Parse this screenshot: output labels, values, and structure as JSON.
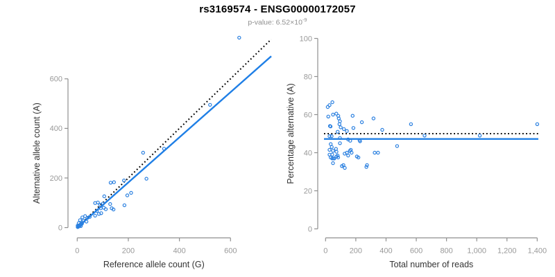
{
  "header": {
    "title": "rs3169574 - ENSG00000172057",
    "pvalue_text": "p-value: 6.52×10",
    "pvalue_exponent": "-9"
  },
  "colors": {
    "point": "#2b80e0",
    "fit_line": "#1f7fe6",
    "reference_line": "#000000",
    "axis": "#8f8f8f",
    "tick_label": "#999999",
    "axis_title": "#333333",
    "title": "#000000",
    "subtitle": "#8f8f8f"
  },
  "chart_data": [
    {
      "name": "allele-counts-scatter",
      "type": "scatter",
      "xlabel": "Reference allele count (G)",
      "ylabel": "Alternative allele count (A)",
      "xlim": [
        0,
        763
      ],
      "ylim": [
        0,
        780
      ],
      "grid": false,
      "legend": "none",
      "xticks": {
        "values": [
          0,
          200,
          400,
          600
        ],
        "labels": [
          "0",
          "200",
          "400",
          "600"
        ]
      },
      "yticks": {
        "values": [
          0,
          200,
          400,
          600
        ],
        "labels": [
          "0",
          "200",
          "400",
          "600"
        ]
      },
      "lines": [
        {
          "name": "identity-line",
          "style": "dotted",
          "slope": 1,
          "intercept": 0
        },
        {
          "name": "regression-line",
          "style": "solid",
          "slope": 0.91,
          "intercept": 0
        }
      ],
      "points": [
        [
          2,
          2
        ],
        [
          3,
          4
        ],
        [
          5,
          5
        ],
        [
          7,
          8
        ],
        [
          9,
          7
        ],
        [
          11,
          11
        ],
        [
          13,
          12
        ],
        [
          16,
          14
        ],
        [
          19,
          18
        ],
        [
          2,
          8
        ],
        [
          4,
          3
        ],
        [
          5,
          6
        ],
        [
          8,
          9
        ],
        [
          10,
          8
        ],
        [
          14,
          6
        ],
        [
          6,
          18
        ],
        [
          18,
          15
        ],
        [
          11,
          30
        ],
        [
          25,
          27
        ],
        [
          36,
          24
        ],
        [
          20,
          41
        ],
        [
          31,
          46
        ],
        [
          40,
          39
        ],
        [
          49,
          43
        ],
        [
          70,
          48
        ],
        [
          85,
          55
        ],
        [
          94,
          58
        ],
        [
          77,
          67
        ],
        [
          92,
          78
        ],
        [
          104,
          80
        ],
        [
          112,
          74
        ],
        [
          70,
          99
        ],
        [
          81,
          101
        ],
        [
          90,
          92
        ],
        [
          101,
          97
        ],
        [
          106,
          126
        ],
        [
          129,
          95
        ],
        [
          135,
          78
        ],
        [
          142,
          73
        ],
        [
          131,
          181
        ],
        [
          144,
          183
        ],
        [
          185,
          90
        ],
        [
          196,
          130
        ],
        [
          211,
          140
        ],
        [
          183,
          190
        ],
        [
          271,
          197
        ],
        [
          258,
          302
        ],
        [
          340,
          318
        ],
        [
          520,
          495
        ],
        [
          634,
          766
        ]
      ]
    },
    {
      "name": "percentage-vs-reads-scatter",
      "type": "scatter",
      "xlabel": "Total number of reads",
      "ylabel": "Percentage alternative (A)",
      "xlim": [
        0,
        1430
      ],
      "ylim": [
        0,
        100
      ],
      "grid": false,
      "legend": "none",
      "xticks": {
        "values": [
          0,
          200,
          400,
          600,
          800,
          1000,
          1200,
          1400
        ],
        "labels": [
          "0",
          "200",
          "400",
          "600",
          "800",
          "1,000",
          "1,200",
          "1,400"
        ]
      },
      "yticks": {
        "values": [
          0,
          20,
          40,
          60,
          80,
          100
        ],
        "labels": [
          "0",
          "20",
          "40",
          "60",
          "80",
          "100"
        ]
      },
      "hlines": [
        {
          "name": "expected-percentage-line",
          "style": "dotted",
          "y": 50
        },
        {
          "name": "mean-percentage-line",
          "style": "solid",
          "y": 47.2
        }
      ],
      "points": [
        [
          14,
          64
        ],
        [
          26,
          65
        ],
        [
          45,
          66.5
        ],
        [
          18,
          59
        ],
        [
          49,
          60
        ],
        [
          71,
          60.5
        ],
        [
          84,
          59.3
        ],
        [
          87,
          58
        ],
        [
          95,
          56.5
        ],
        [
          92,
          55
        ],
        [
          179,
          59.4
        ],
        [
          29,
          54
        ],
        [
          33,
          53.8
        ],
        [
          100,
          53.3
        ],
        [
          121,
          52.4
        ],
        [
          141,
          51.4
        ],
        [
          80,
          51
        ],
        [
          184,
          53
        ],
        [
          240,
          56
        ],
        [
          317,
          58
        ],
        [
          375,
          52
        ],
        [
          565,
          55
        ],
        [
          1400,
          55
        ],
        [
          26,
          48.7
        ],
        [
          40,
          48.7
        ],
        [
          95,
          47.7
        ],
        [
          655,
          49
        ],
        [
          1020,
          49
        ],
        [
          149,
          47
        ],
        [
          163,
          46.3
        ],
        [
          225,
          46.5
        ],
        [
          228,
          46
        ],
        [
          473,
          43.5
        ],
        [
          34,
          44.5
        ],
        [
          41,
          43
        ],
        [
          95,
          45
        ],
        [
          69,
          42
        ],
        [
          26,
          41.5
        ],
        [
          49,
          41
        ],
        [
          72,
          40.5
        ],
        [
          26,
          39
        ],
        [
          44,
          39
        ],
        [
          80,
          38.5
        ],
        [
          126,
          39.5
        ],
        [
          141,
          40
        ],
        [
          149,
          38.5
        ],
        [
          161,
          41
        ],
        [
          167,
          41.5
        ],
        [
          172,
          40
        ],
        [
          207,
          38
        ],
        [
          217,
          37.5
        ],
        [
          325,
          40
        ],
        [
          347,
          40
        ],
        [
          34,
          37.5
        ],
        [
          44,
          37
        ],
        [
          52,
          37
        ],
        [
          58,
          37
        ],
        [
          72,
          38
        ],
        [
          83,
          37.5
        ],
        [
          49,
          34.5
        ],
        [
          108,
          33
        ],
        [
          118,
          33.5
        ],
        [
          127,
          32
        ],
        [
          270,
          32.5
        ],
        [
          274,
          33.5
        ]
      ]
    }
  ]
}
